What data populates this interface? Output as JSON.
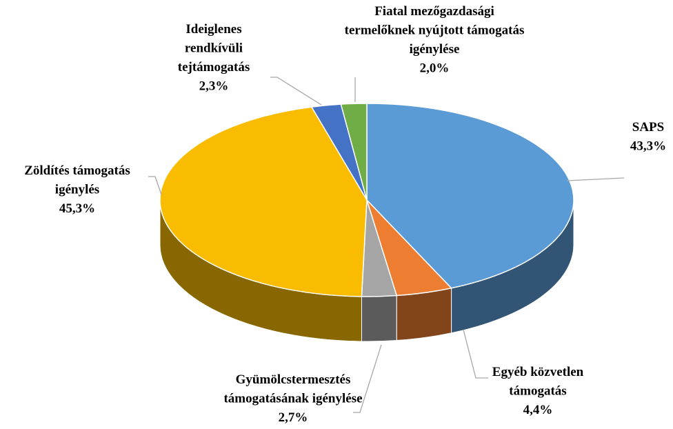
{
  "chart_data": {
    "type": "pie3d",
    "categories": [
      "SAPS",
      "Egyéb közvetlen\ntámogatás",
      "Gyümölcstermesztés\ntámogatásának igénylése",
      "Zöldítés támogatás\nigénylés",
      "Ideiglenes\nrendkívüli\ntejtámogatás",
      "Fiatal mezőgazdasági\ntermelőknek  nyújtott támogatás\nigénylése"
    ],
    "values": [
      43.3,
      4.4,
      2.7,
      45.3,
      2.3,
      2.0
    ],
    "value_labels": [
      "43,3%",
      "4,4%",
      "2,7%",
      "45,3%",
      "2,3%",
      "2,0%"
    ],
    "colors": [
      "#5b9bd5",
      "#ed7d31",
      "#a5a5a5",
      "#f9bc00",
      "#4472c4",
      "#70ad47"
    ]
  }
}
